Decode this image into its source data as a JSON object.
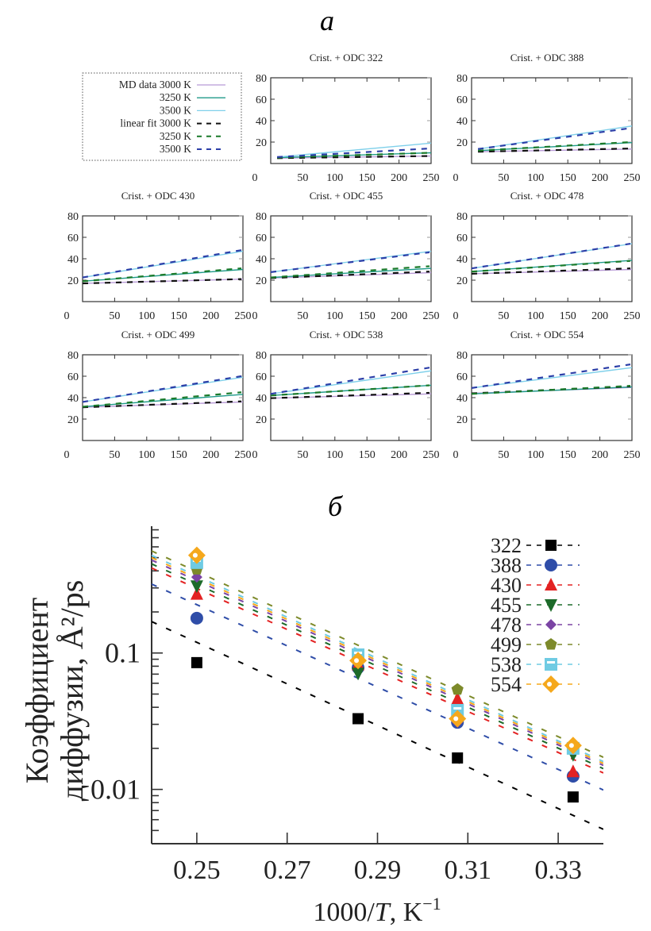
{
  "panel_a_label": "а",
  "panel_b_label": "б",
  "legend_a": {
    "entries": [
      {
        "label": "MD data 3000 K",
        "style": "solid",
        "color": "#b89ad6"
      },
      {
        "label": "3250 K",
        "style": "solid",
        "color": "#1f9a8a"
      },
      {
        "label": "3500 K",
        "style": "solid",
        "color": "#7fd0ea"
      },
      {
        "label": "linear fit 3000 K",
        "style": "dashed",
        "color": "#111111"
      },
      {
        "label": "3250 K",
        "style": "dashed",
        "color": "#1a7a2a"
      },
      {
        "label": "3500 K",
        "style": "dashed",
        "color": "#2c3fa8"
      }
    ]
  },
  "legend_b": {
    "entries": [
      {
        "label": "322",
        "marker": "square",
        "color": "#000000"
      },
      {
        "label": "388",
        "marker": "circle",
        "color": "#2f4da8"
      },
      {
        "label": "430",
        "marker": "triangle-up",
        "color": "#e32222"
      },
      {
        "label": "455",
        "marker": "triangle-down",
        "color": "#1d6b2a"
      },
      {
        "label": "478",
        "marker": "diamond",
        "color": "#7b44a4"
      },
      {
        "label": "499",
        "marker": "pentagon",
        "color": "#7d8a2a"
      },
      {
        "label": "538",
        "marker": "square-open",
        "color": "#6fcbe3"
      },
      {
        "label": "554",
        "marker": "diamond-open",
        "color": "#f5a81c"
      }
    ]
  },
  "chart_data": [
    {
      "type": "line",
      "title": "Crist. + ODC 322",
      "xlim": [
        0,
        250
      ],
      "ylim": [
        0,
        80
      ],
      "xticks": [
        "0",
        "50",
        "100",
        "150",
        "200",
        "250"
      ],
      "yticks": [
        "20",
        "40",
        "60",
        "80"
      ],
      "x": [
        10,
        250
      ],
      "series": [
        {
          "name": "MD data 3000 K",
          "values": [
            5,
            7
          ]
        },
        {
          "name": "MD data 3250 K",
          "values": [
            5.5,
            10
          ]
        },
        {
          "name": "MD data 3500 K",
          "values": [
            6,
            19
          ]
        },
        {
          "name": "linear fit 3000 K",
          "values": [
            5,
            7
          ]
        },
        {
          "name": "linear fit 3250 K",
          "values": [
            5.5,
            10
          ]
        },
        {
          "name": "linear fit 3500 K",
          "values": [
            6,
            14
          ]
        }
      ]
    },
    {
      "type": "line",
      "title": "Crist. + ODC 388",
      "xlim": [
        0,
        250
      ],
      "ylim": [
        0,
        80
      ],
      "xticks": [
        "0",
        "50",
        "100",
        "150",
        "200",
        "250"
      ],
      "yticks": [
        "20",
        "40",
        "60",
        "80"
      ],
      "x": [
        10,
        250
      ],
      "series": [
        {
          "name": "MD data 3000 K",
          "values": [
            11,
            13.5
          ]
        },
        {
          "name": "MD data 3250 K",
          "values": [
            12,
            19.5
          ]
        },
        {
          "name": "MD data 3500 K",
          "values": [
            13.5,
            35
          ]
        },
        {
          "name": "linear fit 3000 K",
          "values": [
            11,
            14
          ]
        },
        {
          "name": "linear fit 3250 K",
          "values": [
            12,
            20
          ]
        },
        {
          "name": "linear fit 3500 K",
          "values": [
            13.5,
            33
          ]
        }
      ]
    },
    {
      "type": "line",
      "title": "Crist. + ODC 430",
      "xlim": [
        0,
        250
      ],
      "ylim": [
        0,
        80
      ],
      "xticks": [
        "0",
        "50",
        "100",
        "150",
        "200",
        "250"
      ],
      "yticks": [
        "20",
        "40",
        "60",
        "80"
      ],
      "x": [
        0,
        250
      ],
      "series": [
        {
          "name": "MD data 3000 K",
          "values": [
            17,
            21
          ]
        },
        {
          "name": "MD data 3250 K",
          "values": [
            19,
            30
          ]
        },
        {
          "name": "MD data 3500 K",
          "values": [
            22.5,
            47
          ]
        },
        {
          "name": "linear fit 3000 K",
          "values": [
            17,
            21
          ]
        },
        {
          "name": "linear fit 3250 K",
          "values": [
            19,
            31
          ]
        },
        {
          "name": "linear fit 3500 K",
          "values": [
            22.5,
            48
          ]
        }
      ]
    },
    {
      "type": "line",
      "title": "Crist. + ODC 455",
      "xlim": [
        0,
        250
      ],
      "ylim": [
        0,
        80
      ],
      "xticks": [
        "0",
        "50",
        "100",
        "150",
        "200",
        "250"
      ],
      "yticks": [
        "20",
        "40",
        "60",
        "80"
      ],
      "x": [
        0,
        250
      ],
      "series": [
        {
          "name": "MD data 3000 K",
          "values": [
            22,
            27
          ]
        },
        {
          "name": "MD data 3250 K",
          "values": [
            22.5,
            31
          ]
        },
        {
          "name": "MD data 3500 K",
          "values": [
            27.5,
            47
          ]
        },
        {
          "name": "linear fit 3000 K",
          "values": [
            22,
            28
          ]
        },
        {
          "name": "linear fit 3250 K",
          "values": [
            22.5,
            33
          ]
        },
        {
          "name": "linear fit 3500 K",
          "values": [
            27.5,
            46
          ]
        }
      ]
    },
    {
      "type": "line",
      "title": "Crist. + ODC 478",
      "xlim": [
        0,
        250
      ],
      "ylim": [
        0,
        80
      ],
      "xticks": [
        "0",
        "50",
        "100",
        "150",
        "200",
        "250"
      ],
      "yticks": [
        "20",
        "40",
        "60",
        "80"
      ],
      "x": [
        0,
        250
      ],
      "series": [
        {
          "name": "MD data 3000 K",
          "values": [
            26,
            30
          ]
        },
        {
          "name": "MD data 3250 K",
          "values": [
            28,
            38.5
          ]
        },
        {
          "name": "MD data 3500 K",
          "values": [
            31,
            54
          ]
        },
        {
          "name": "linear fit 3000 K",
          "values": [
            26,
            31
          ]
        },
        {
          "name": "linear fit 3250 K",
          "values": [
            28,
            38
          ]
        },
        {
          "name": "linear fit 3500 K",
          "values": [
            31,
            54
          ]
        }
      ]
    },
    {
      "type": "line",
      "title": "Crist. + ODC 499",
      "xlim": [
        0,
        250
      ],
      "ylim": [
        0,
        80
      ],
      "xticks": [
        "0",
        "50",
        "100",
        "150",
        "200",
        "250"
      ],
      "yticks": [
        "20",
        "40",
        "60",
        "80"
      ],
      "x": [
        0,
        250
      ],
      "series": [
        {
          "name": "MD data 3000 K",
          "values": [
            31,
            36
          ]
        },
        {
          "name": "MD data 3250 K",
          "values": [
            31.5,
            43
          ]
        },
        {
          "name": "MD data 3500 K",
          "values": [
            36,
            59
          ]
        },
        {
          "name": "linear fit 3000 K",
          "values": [
            31,
            36.5
          ]
        },
        {
          "name": "linear fit 3250 K",
          "values": [
            31.5,
            45
          ]
        },
        {
          "name": "linear fit 3500 K",
          "values": [
            36,
            60
          ]
        }
      ]
    },
    {
      "type": "line",
      "title": "Crist. + ODC 538",
      "xlim": [
        0,
        250
      ],
      "ylim": [
        0,
        80
      ],
      "xticks": [
        "0",
        "50",
        "100",
        "150",
        "200",
        "250"
      ],
      "yticks": [
        "20",
        "40",
        "60",
        "80"
      ],
      "x": [
        0,
        250
      ],
      "series": [
        {
          "name": "MD data 3000 K",
          "values": [
            39.5,
            43.5
          ]
        },
        {
          "name": "MD data 3250 K",
          "values": [
            42,
            51.5
          ]
        },
        {
          "name": "MD data 3500 K",
          "values": [
            43.5,
            65
          ]
        },
        {
          "name": "linear fit 3000 K",
          "values": [
            39.5,
            44.5
          ]
        },
        {
          "name": "linear fit 3250 K",
          "values": [
            42,
            51.5
          ]
        },
        {
          "name": "linear fit 3500 K",
          "values": [
            43.5,
            68
          ]
        }
      ]
    },
    {
      "type": "line",
      "title": "Crist. + ODC 554",
      "xlim": [
        0,
        250
      ],
      "ylim": [
        0,
        80
      ],
      "xticks": [
        "0",
        "50",
        "100",
        "150",
        "200",
        "250"
      ],
      "yticks": [
        "20",
        "40",
        "60",
        "80"
      ],
      "x": [
        0,
        250
      ],
      "series": [
        {
          "name": "MD data 3000 K",
          "values": [
            44,
            49.5
          ]
        },
        {
          "name": "MD data 3250 K",
          "values": [
            43.5,
            50
          ]
        },
        {
          "name": "MD data 3500 K",
          "values": [
            49,
            68
          ]
        },
        {
          "name": "linear fit 3000 K",
          "values": [
            44,
            50.5
          ]
        },
        {
          "name": "linear fit 3250 K",
          "values": [
            43.5,
            51
          ]
        },
        {
          "name": "linear fit 3500 K",
          "values": [
            49,
            71
          ]
        }
      ]
    },
    {
      "type": "scatter",
      "title": "",
      "xlabel": "1000/T, K⁻¹",
      "ylabel_line1": "Коэффициент",
      "ylabel_line2": "диффузии, Å²/ps",
      "xlim": [
        0.24,
        0.34
      ],
      "ylim": [
        0.004,
        0.85
      ],
      "yscale": "log",
      "xticks": [
        0.25,
        0.27,
        0.29,
        0.31,
        0.33
      ],
      "xtick_labels": [
        "0.25",
        "0.27",
        "0.29",
        "0.31",
        "0.33"
      ],
      "yticks": [
        0.01,
        0.1
      ],
      "ytick_labels": [
        "0.01",
        "0.1"
      ],
      "legend": "top-right",
      "x": [
        0.25,
        0.2857,
        0.3077,
        0.3333
      ],
      "series": [
        {
          "name": "322",
          "values": [
            0.085,
            0.033,
            0.017,
            0.0088
          ],
          "fit": [
            0.17,
            0.0051
          ]
        },
        {
          "name": "388",
          "values": [
            0.18,
            0.078,
            0.031,
            0.0125
          ],
          "fit": [
            0.32,
            0.0099
          ]
        },
        {
          "name": "430",
          "values": [
            0.27,
            0.082,
            0.046,
            0.0135
          ],
          "fit": [
            0.42,
            0.0132
          ]
        },
        {
          "name": "455",
          "values": [
            0.31,
            0.071,
            0.038,
            0.018
          ],
          "fit": [
            0.45,
            0.0142
          ]
        },
        {
          "name": "478",
          "values": [
            0.36,
            0.087,
            0.031,
            0.0195
          ],
          "fit": [
            0.48,
            0.015
          ]
        },
        {
          "name": "499",
          "values": [
            0.41,
            0.095,
            0.054,
            0.021
          ],
          "fit": [
            0.56,
            0.0172
          ]
        },
        {
          "name": "538",
          "values": [
            0.46,
            0.097,
            0.038,
            0.02
          ],
          "fit": [
            0.52,
            0.016
          ]
        },
        {
          "name": "554",
          "values": [
            0.52,
            0.088,
            0.033,
            0.021
          ],
          "fit": [
            0.5,
            0.0155
          ]
        }
      ]
    }
  ]
}
